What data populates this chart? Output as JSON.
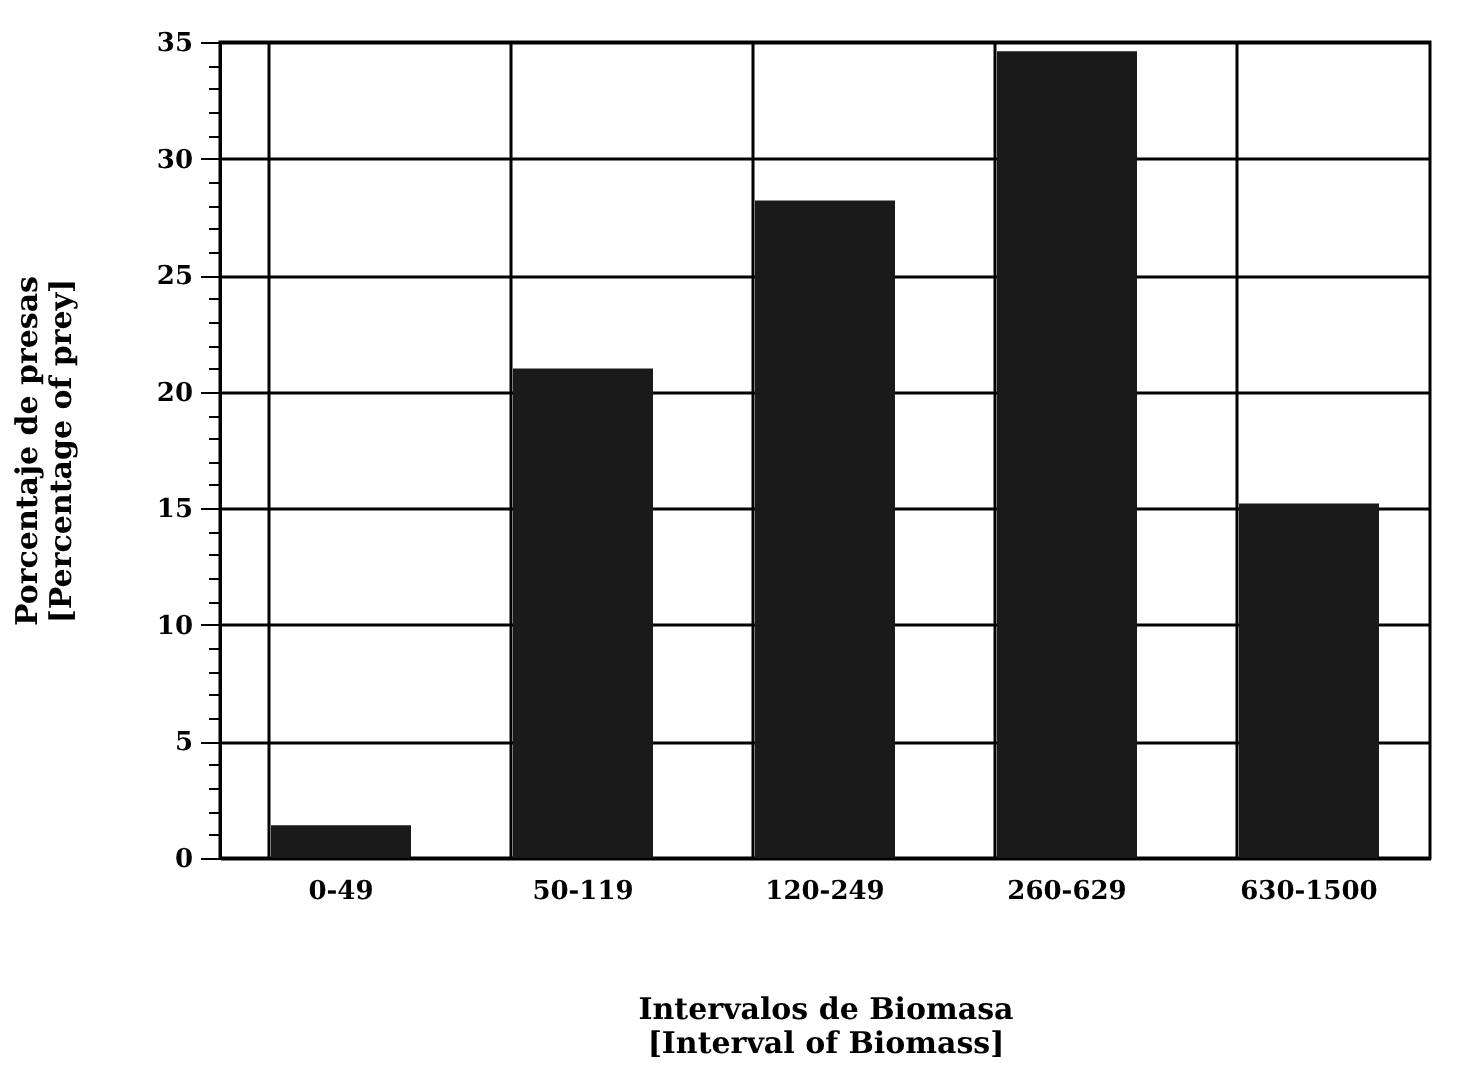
{
  "chart_data": {
    "type": "bar",
    "categories": [
      "0-49",
      "50-119",
      "120-249",
      "260-629",
      "630-1500"
    ],
    "values": [
      1.4,
      21.0,
      28.2,
      34.6,
      15.2
    ],
    "color": "#1a1a1a",
    "xlabel": "Intervalos de Biomasa\n[Interval of Biomass]",
    "ylabel": "Porcentaje de presas\n[Percentage of prey]",
    "ylim": [
      0,
      35
    ],
    "yticks": [
      0,
      {
        "value": 1,
        "label": null
      },
      {
        "value": 2,
        "label": null
      },
      {
        "value": 3,
        "label": null
      },
      {
        "value": 4,
        "label": null
      },
      5,
      {
        "value": 6,
        "label": null
      },
      {
        "value": 7,
        "label": null
      },
      {
        "value": 8,
        "label": null
      },
      {
        "value": 9,
        "label": null
      },
      10,
      {
        "value": 11,
        "label": null
      },
      {
        "value": 12,
        "label": null
      },
      {
        "value": 13,
        "label": null
      },
      {
        "value": 14,
        "label": null
      },
      15,
      {
        "value": 16,
        "label": null
      },
      {
        "value": 17,
        "label": null
      },
      {
        "value": 18,
        "label": null
      },
      {
        "value": 19,
        "label": null
      },
      20,
      {
        "value": 21,
        "label": null
      },
      {
        "value": 22,
        "label": null
      },
      {
        "value": 23,
        "label": null
      },
      {
        "value": 24,
        "label": null
      },
      25,
      {
        "value": 26,
        "label": null
      },
      {
        "value": 27,
        "label": null
      },
      {
        "value": 28,
        "label": null
      },
      {
        "value": 29,
        "label": null
      },
      30,
      {
        "value": 31,
        "label": null
      },
      {
        "value": 32,
        "label": null
      },
      {
        "value": 33,
        "label": null
      },
      {
        "value": 34,
        "label": null
      },
      35
    ],
    "grid": true
  }
}
